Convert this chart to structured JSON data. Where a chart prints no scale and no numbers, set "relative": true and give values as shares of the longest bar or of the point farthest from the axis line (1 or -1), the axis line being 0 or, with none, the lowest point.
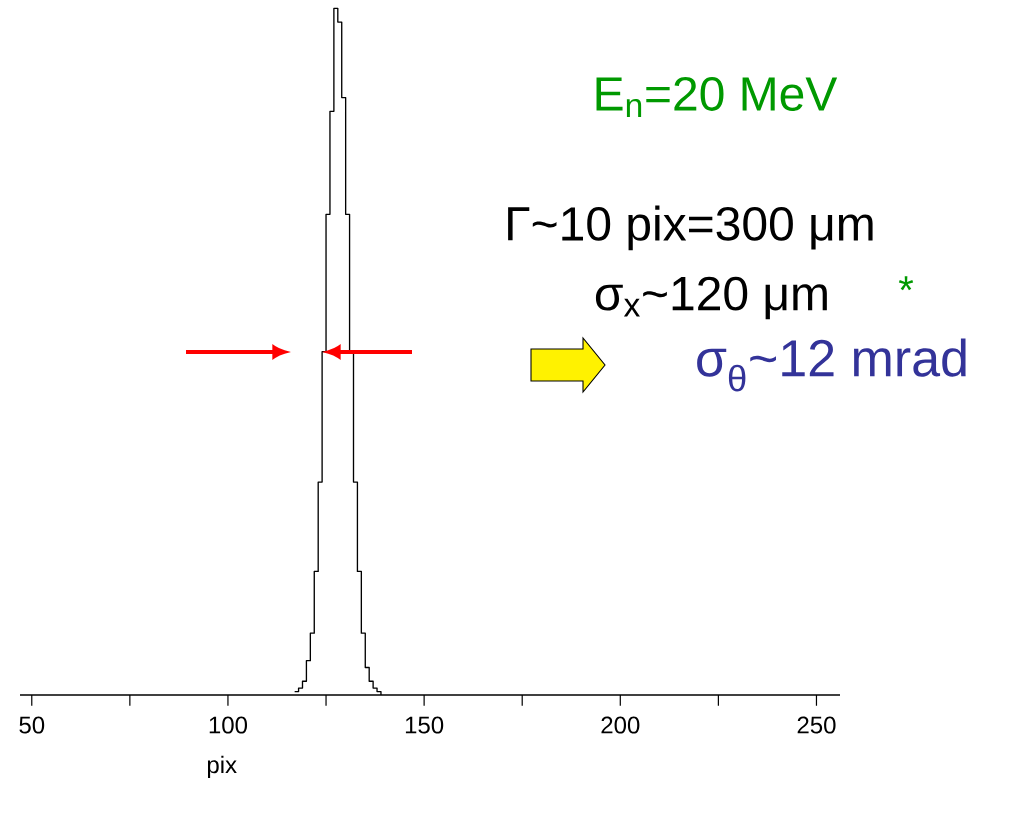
{
  "chart_data": {
    "type": "step",
    "relative": true,
    "color": "#000000",
    "xlabel": "pix",
    "x": [
      117,
      118,
      119,
      120,
      121,
      122,
      123,
      124,
      125,
      126,
      127,
      128,
      129,
      130,
      131,
      132,
      133,
      134,
      135,
      136,
      137,
      138,
      139
    ],
    "values": [
      0.005,
      0.01,
      0.02,
      0.05,
      0.09,
      0.18,
      0.31,
      0.5,
      0.7,
      0.85,
      1,
      0.98,
      0.87,
      0.7,
      0.5,
      0.31,
      0.18,
      0.09,
      0.04,
      0.02,
      0.01,
      0.005,
      0
    ],
    "xlim": [
      47,
      256
    ],
    "xticks": [
      {
        "value": 50,
        "label": "50"
      },
      {
        "value": 75,
        "label": null
      },
      {
        "value": 100,
        "label": "100"
      },
      {
        "value": 125,
        "label": null
      },
      {
        "value": 150,
        "label": "150"
      },
      {
        "value": 175,
        "label": null
      },
      {
        "value": 200,
        "label": "200"
      },
      {
        "value": 225,
        "label": null
      },
      {
        "value": 250,
        "label": "250"
      }
    ],
    "annotations": [
      "E$_{n}$=20 MeV",
      "Γ~10 pix=300 μm",
      "σ$_{x}$~120 μm",
      "*",
      "σ$_{θ}$~12 mrad"
    ]
  }
}
